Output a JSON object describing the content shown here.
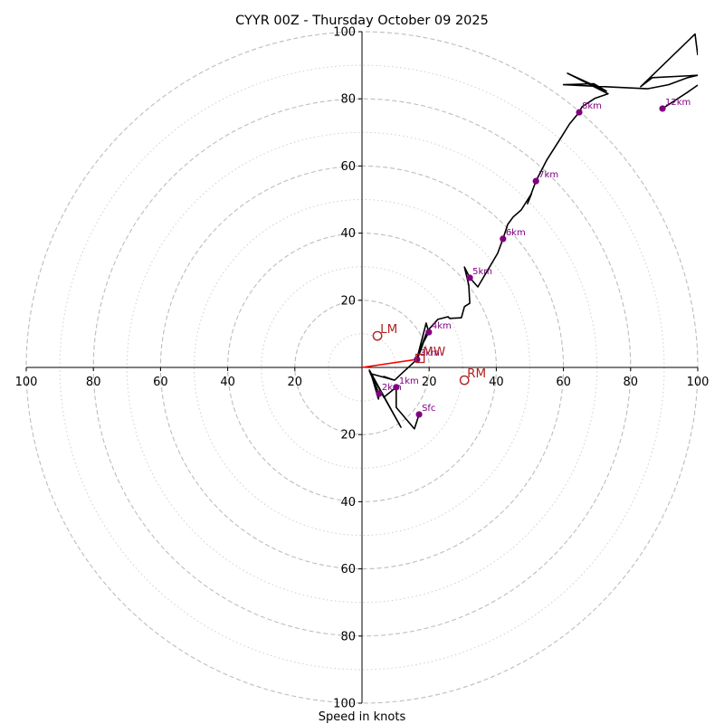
{
  "chart_data": {
    "type": "scatter",
    "subtype": "hodograph",
    "title": "CYYR 00Z - Thursday October 09 2025",
    "xlabel": "Speed in knots",
    "ylabel": "",
    "xlim": [
      -100,
      100
    ],
    "ylim": [
      -100,
      100
    ],
    "units": "knots",
    "rings": {
      "dashed": [
        20,
        40,
        60,
        80,
        100
      ],
      "dotted": [
        10,
        30,
        50,
        70,
        90
      ],
      "color": "#bdbdbd"
    },
    "x_ticks": [
      {
        "value": -100,
        "label": "100"
      },
      {
        "value": -80,
        "label": "80"
      },
      {
        "value": -60,
        "label": "60"
      },
      {
        "value": -40,
        "label": "40"
      },
      {
        "value": -20,
        "label": "20"
      },
      {
        "value": 20,
        "label": "20"
      },
      {
        "value": 40,
        "label": "40"
      },
      {
        "value": 60,
        "label": "60"
      },
      {
        "value": 80,
        "label": "80"
      },
      {
        "value": 100,
        "label": "100"
      }
    ],
    "y_ticks": [
      {
        "value": 100,
        "label": "100"
      },
      {
        "value": 80,
        "label": "80"
      },
      {
        "value": 60,
        "label": "60"
      },
      {
        "value": 40,
        "label": "40"
      },
      {
        "value": 20,
        "label": "20"
      },
      {
        "value": -20,
        "label": "20"
      },
      {
        "value": -40,
        "label": "40"
      },
      {
        "value": -60,
        "label": "60"
      },
      {
        "value": -80,
        "label": "80"
      },
      {
        "value": -100,
        "label": "100"
      }
    ],
    "series": [
      {
        "name": "hodograph-trace",
        "color": "#000000",
        "points": [
          [
            17.0,
            -14.0
          ],
          [
            15.6,
            -18.3
          ],
          [
            10.2,
            -11.9
          ],
          [
            10.2,
            -5.9
          ],
          [
            6.5,
            -8.9
          ],
          [
            2.2,
            -0.8
          ],
          [
            11.6,
            -17.8
          ],
          [
            2.2,
            -1.1
          ],
          [
            5.1,
            -7.8
          ],
          [
            4.9,
            -9.4
          ],
          [
            2.7,
            -1.9
          ],
          [
            9.7,
            -3.8
          ],
          [
            6.5,
            -2.7
          ],
          [
            9.7,
            -3.8
          ],
          [
            16.4,
            2.4
          ],
          [
            17.5,
            5.1
          ],
          [
            18.3,
            7.5
          ],
          [
            19.9,
            10.5
          ],
          [
            19.1,
            13.2
          ],
          [
            16.4,
            2.7
          ],
          [
            19.4,
            10.8
          ],
          [
            22.6,
            14.3
          ],
          [
            25.6,
            15.1
          ],
          [
            26.1,
            14.6
          ],
          [
            29.6,
            14.8
          ],
          [
            30.5,
            18.1
          ],
          [
            32.1,
            19.1
          ],
          [
            31.8,
            24.5
          ],
          [
            30.5,
            29.9
          ],
          [
            32.1,
            26.7
          ],
          [
            34.5,
            24.0
          ],
          [
            40.4,
            34.0
          ],
          [
            42.0,
            38.3
          ],
          [
            43.4,
            42.6
          ],
          [
            45.0,
            44.8
          ],
          [
            47.4,
            46.9
          ],
          [
            50.5,
            51.8
          ],
          [
            49.3,
            48.8
          ],
          [
            51.8,
            55.5
          ],
          [
            55.0,
            61.7
          ],
          [
            59.3,
            68.5
          ],
          [
            61.8,
            72.5
          ],
          [
            64.7,
            76.0
          ],
          [
            65.5,
            77.6
          ],
          [
            69.3,
            80.1
          ],
          [
            73.3,
            81.5
          ],
          [
            61.2,
            87.6
          ],
          [
            72.8,
            82.3
          ],
          [
            69.0,
            84.5
          ],
          [
            60.0,
            84.2
          ],
          [
            85.0,
            83.0
          ],
          [
            91.3,
            84.2
          ],
          [
            97.0,
            86.3
          ],
          [
            100.0,
            87.0
          ],
          [
            86.5,
            86.3
          ],
          [
            83.0,
            83.6
          ],
          [
            99.2,
            99.3
          ],
          [
            100.0,
            93.0
          ]
        ]
      },
      {
        "name": "upper-trace",
        "color": "#000000",
        "points": [
          [
            89.5,
            77.1
          ],
          [
            97.0,
            82.0
          ],
          [
            100.0,
            84.1
          ]
        ]
      }
    ],
    "height_markers": [
      {
        "label": "Sfc",
        "u": 17.0,
        "v": -14.0
      },
      {
        "label": "1km",
        "u": 10.2,
        "v": -5.9
      },
      {
        "label": "2km",
        "u": 5.1,
        "v": -7.8
      },
      {
        "label": "3km",
        "u": 16.4,
        "v": 2.4
      },
      {
        "label": "4km",
        "u": 19.9,
        "v": 10.5
      },
      {
        "label": "5km",
        "u": 32.1,
        "v": 26.7
      },
      {
        "label": "6km",
        "u": 42.0,
        "v": 38.3
      },
      {
        "label": "7km",
        "u": 51.8,
        "v": 55.5
      },
      {
        "label": "8km",
        "u": 64.7,
        "v": 76.0
      },
      {
        "label": "12km",
        "u": 89.5,
        "v": 77.1
      }
    ],
    "height_marker_color": "#800080",
    "storm_motion": [
      {
        "label": "LM",
        "u": 4.6,
        "v": 9.4,
        "marker": "circle"
      },
      {
        "label": "RM",
        "u": 30.5,
        "v": -3.8,
        "marker": "circle"
      },
      {
        "label": "MW",
        "u": 17.3,
        "v": 2.7,
        "marker": "square"
      }
    ],
    "storm_motion_color": "#b22222",
    "shear_vector": {
      "from": [
        0,
        0
      ],
      "to": [
        16.4,
        2.4
      ],
      "color": "#ff0000"
    },
    "grid": true,
    "legend": "none"
  }
}
